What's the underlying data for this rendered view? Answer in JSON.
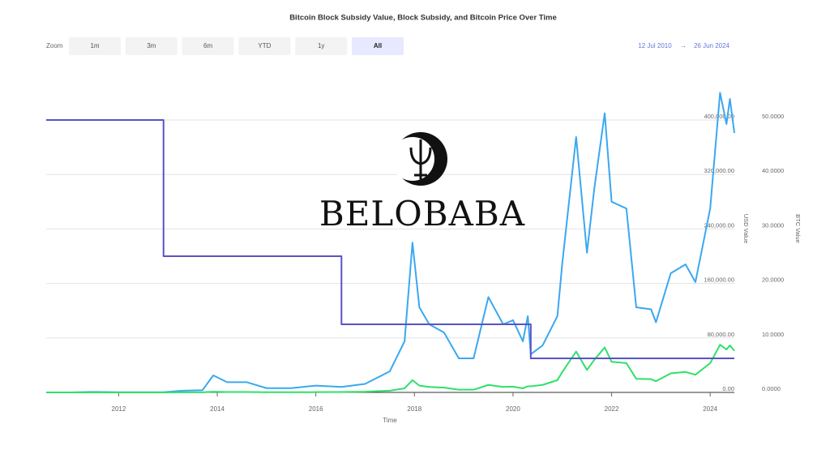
{
  "chart_data": {
    "type": "line",
    "title": "Bitcoin Block Subsidy Value, Block Subsidy, and Bitcoin Price Over Time",
    "range_selector": {
      "label": "Zoom",
      "buttons": [
        "1m",
        "3m",
        "6m",
        "YTD",
        "1y",
        "All"
      ],
      "selected": 5,
      "from": "12 Jul 2010",
      "separator": "→",
      "to": "26 Jun 2024"
    },
    "watermark": "BELOBABA",
    "x_label": "Time",
    "y_label": "USD Value",
    "y2_label": "BTC Value",
    "xlim": [
      2010.53,
      2024.49
    ],
    "xticks": [
      2012,
      2014,
      2016,
      2018,
      2020,
      2022,
      2024
    ],
    "ylim": [
      0,
      440000
    ],
    "yticks": [
      {
        "value": 0,
        "label": "0.00"
      },
      {
        "value": 80000,
        "label": "80,000.00"
      },
      {
        "value": 160000,
        "label": "160,000.00"
      },
      {
        "value": 240000,
        "label": "240,000.00"
      },
      {
        "value": 320000,
        "label": "320,000.00"
      },
      {
        "value": 400000,
        "label": "400,000.00"
      }
    ],
    "y2lim": [
      0,
      55
    ],
    "y2ticks": [
      {
        "value": 0,
        "label": "0.0000"
      },
      {
        "value": 10,
        "label": "10.0000"
      },
      {
        "value": 20,
        "label": "20.0000"
      },
      {
        "value": 30,
        "label": "30.0000"
      },
      {
        "value": 40,
        "label": "40.0000"
      },
      {
        "value": 50,
        "label": "50.0000"
      }
    ],
    "grid": true,
    "series": [
      {
        "color": "#5a52c8",
        "axis": "y2",
        "x": [
          2010.53,
          2012.91,
          2012.91,
          2016.52,
          2016.52,
          2020.36,
          2020.36,
          2024.49
        ],
        "values": [
          50,
          50,
          25,
          25,
          12.5,
          12.5,
          6.25,
          6.25
        ]
      },
      {
        "color": "#3aa8f0",
        "x": [
          2010.53,
          2011.0,
          2011.45,
          2012.0,
          2012.5,
          2012.91,
          2013.3,
          2013.7,
          2013.92,
          2014.2,
          2014.6,
          2015.0,
          2015.5,
          2016.0,
          2016.52,
          2017.0,
          2017.5,
          2017.8,
          2017.96,
          2018.1,
          2018.3,
          2018.6,
          2018.9,
          2019.2,
          2019.5,
          2019.8,
          2020.0,
          2020.2,
          2020.3,
          2020.36,
          2020.6,
          2020.9,
          2021.0,
          2021.28,
          2021.5,
          2021.65,
          2021.86,
          2022.0,
          2022.3,
          2022.5,
          2022.8,
          2022.9,
          2023.2,
          2023.5,
          2023.7,
          2024.0,
          2024.2,
          2024.33,
          2024.4,
          2024.49
        ],
        "values": [
          5,
          15,
          750,
          300,
          350,
          300,
          2500,
          3300,
          25000,
          15000,
          15000,
          6250,
          6250,
          10000,
          8000,
          12500,
          31000,
          75000,
          220000,
          125000,
          100000,
          88000,
          50000,
          50000,
          140000,
          100000,
          106000,
          75000,
          112000,
          56000,
          69000,
          112000,
          190000,
          375000,
          205000,
          300000,
          410000,
          280000,
          270000,
          125000,
          122000,
          103000,
          175000,
          188000,
          162000,
          270000,
          440000,
          394000,
          431000,
          381000
        ]
      },
      {
        "color": "#2ee06a",
        "x": [
          2010.53,
          2011.0,
          2011.45,
          2012.0,
          2012.5,
          2012.91,
          2013.3,
          2013.7,
          2013.92,
          2014.2,
          2014.6,
          2015.0,
          2015.5,
          2016.0,
          2016.52,
          2017.0,
          2017.5,
          2017.8,
          2017.96,
          2018.1,
          2018.3,
          2018.6,
          2018.9,
          2019.2,
          2019.5,
          2019.8,
          2020.0,
          2020.2,
          2020.3,
          2020.36,
          2020.6,
          2020.9,
          2021.0,
          2021.28,
          2021.5,
          2021.65,
          2021.86,
          2022.0,
          2022.3,
          2022.5,
          2022.8,
          2022.9,
          2023.2,
          2023.5,
          2023.7,
          2024.0,
          2024.2,
          2024.33,
          2024.4,
          2024.49
        ],
        "values": [
          0.1,
          0.3,
          15,
          6,
          7,
          12,
          100,
          130,
          1000,
          600,
          600,
          250,
          250,
          400,
          650,
          1000,
          2500,
          6000,
          18000,
          10000,
          8000,
          7000,
          4000,
          4000,
          11000,
          8000,
          8500,
          6000,
          9000,
          9000,
          11000,
          18000,
          30000,
          60000,
          33000,
          48000,
          66000,
          45000,
          43000,
          20000,
          19500,
          16500,
          28000,
          30000,
          26000,
          43000,
          70000,
          63000,
          69000,
          61000
        ]
      }
    ]
  }
}
